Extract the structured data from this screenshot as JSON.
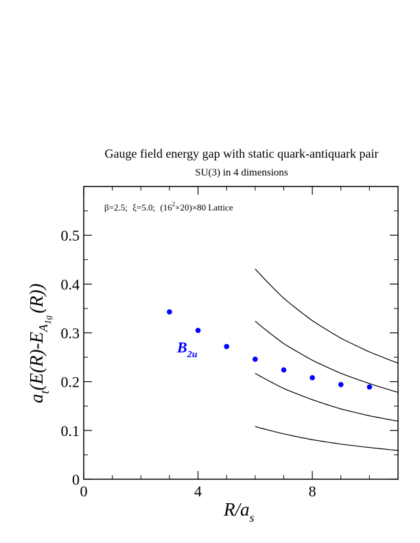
{
  "chart_data": {
    "type": "scatter",
    "title": "Gauge field energy gap with static quark-antiquark pair",
    "subtitle": "SU(3) in 4 dimensions",
    "annotation": {
      "beta": "β=2.5;",
      "xi": "ξ=5.0;",
      "lattice_base": "(16",
      "lattice_exp": "2",
      "lattice_rest": "×20)×80 Lattice"
    },
    "xlabel": {
      "main": "R/a",
      "sub": "s"
    },
    "ylabel": {
      "a": "a",
      "t": "t",
      "mid": "(E(R)-E",
      "A": "A",
      "sub": "1g",
      "end": "(R))"
    },
    "xlim": [
      0,
      11
    ],
    "ylim": [
      0,
      0.6
    ],
    "x_ticks": [
      {
        "value": 0,
        "label": "0"
      },
      {
        "value": 4,
        "label": "4"
      },
      {
        "value": 8,
        "label": "8"
      }
    ],
    "y_ticks": [
      {
        "value": 0,
        "label": "0"
      },
      {
        "value": 0.1,
        "label": "0.1"
      },
      {
        "value": 0.2,
        "label": "0.2"
      },
      {
        "value": 0.3,
        "label": "0.3"
      },
      {
        "value": 0.4,
        "label": "0.4"
      },
      {
        "value": 0.5,
        "label": "0.5"
      }
    ],
    "grid": false,
    "series": [
      {
        "name": "B_2u",
        "label_main": "B",
        "label_sub": "2u",
        "color": "#0000ff",
        "x": [
          3,
          4,
          5,
          6,
          7,
          8,
          9,
          10
        ],
        "y": [
          0.343,
          0.305,
          0.272,
          0.246,
          0.224,
          0.208,
          0.194,
          0.189
        ]
      }
    ],
    "curves": [
      {
        "color": "#000000",
        "x": [
          6,
          7,
          8,
          9,
          10,
          11
        ],
        "y": [
          0.108,
          0.093,
          0.081,
          0.072,
          0.065,
          0.059
        ]
      },
      {
        "color": "#000000",
        "x": [
          6,
          7,
          8,
          9,
          10,
          11
        ],
        "y": [
          0.217,
          0.186,
          0.163,
          0.144,
          0.13,
          0.119
        ]
      },
      {
        "color": "#000000",
        "x": [
          6,
          7,
          8,
          9,
          10,
          11
        ],
        "y": [
          0.324,
          0.278,
          0.244,
          0.217,
          0.196,
          0.178
        ]
      },
      {
        "color": "#000000",
        "x": [
          6,
          7,
          8,
          9,
          10,
          11
        ],
        "y": [
          0.431,
          0.371,
          0.325,
          0.289,
          0.261,
          0.238
        ]
      }
    ]
  }
}
